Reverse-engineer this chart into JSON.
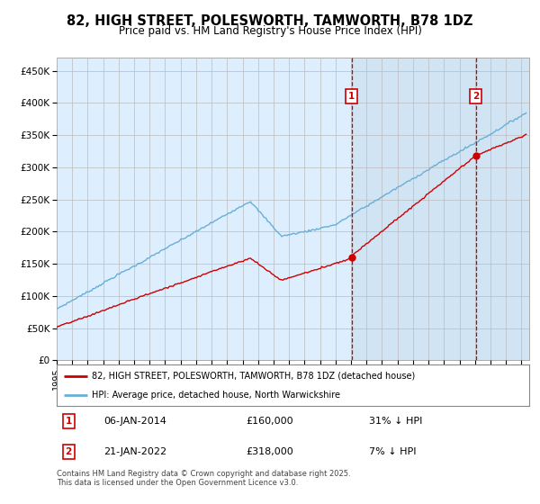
{
  "title": "82, HIGH STREET, POLESWORTH, TAMWORTH, B78 1DZ",
  "subtitle": "Price paid vs. HM Land Registry's House Price Index (HPI)",
  "xlim_start": 1995.0,
  "xlim_end": 2025.5,
  "ylim_min": 0,
  "ylim_max": 470000,
  "yticks": [
    0,
    50000,
    100000,
    150000,
    200000,
    250000,
    300000,
    350000,
    400000,
    450000
  ],
  "ytick_labels": [
    "£0",
    "£50K",
    "£100K",
    "£150K",
    "£200K",
    "£250K",
    "£300K",
    "£350K",
    "£400K",
    "£450K"
  ],
  "hpi_color": "#6aaed6",
  "price_color": "#cc0000",
  "marker1_date": 2014.03,
  "marker1_price": 160000,
  "marker1_label": "06-JAN-2014",
  "marker1_price_label": "£160,000",
  "marker1_note": "31% ↓ HPI",
  "marker2_date": 2022.05,
  "marker2_price": 318000,
  "marker2_label": "21-JAN-2022",
  "marker2_price_label": "£318,000",
  "marker2_note": "7% ↓ HPI",
  "legend_line1": "82, HIGH STREET, POLESWORTH, TAMWORTH, B78 1DZ (detached house)",
  "legend_line2": "HPI: Average price, detached house, North Warwickshire",
  "footnote": "Contains HM Land Registry data © Crown copyright and database right 2025.\nThis data is licensed under the Open Government Licence v3.0.",
  "background_color": "#ffffff",
  "plot_bg_color": "#ddeeff",
  "shade_color": "#cce0f0"
}
